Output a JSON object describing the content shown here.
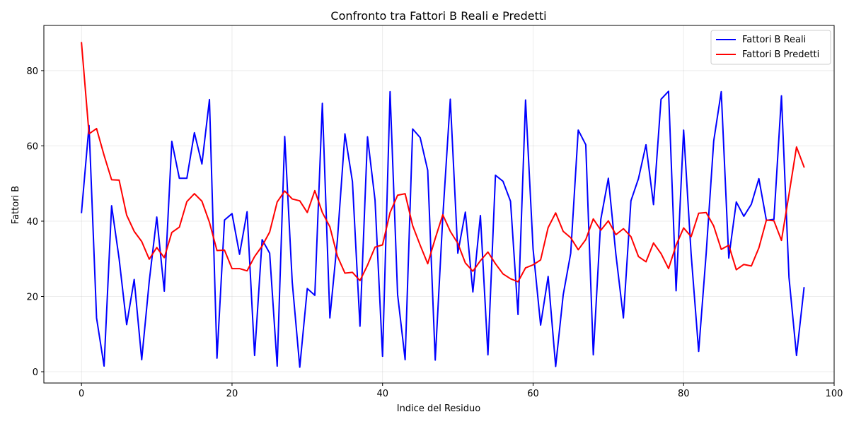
{
  "chart_data": {
    "type": "line",
    "title": "Confronto tra Fattori B Reali e Predetti",
    "xlabel": "Indice del Residuo",
    "ylabel": "Fattori B",
    "xlim": [
      -5,
      100
    ],
    "ylim": [
      -3,
      92
    ],
    "xticks": [
      0,
      20,
      40,
      60,
      80,
      100
    ],
    "yticks": [
      0,
      20,
      40,
      60,
      80
    ],
    "grid": true,
    "legend_position": "top-right",
    "series": [
      {
        "name": "Fattori B Reali",
        "color": "#0000ff",
        "values": [
          42.3,
          65.4,
          14.3,
          1.5,
          44.1,
          30.0,
          12.5,
          24.5,
          3.2,
          24.0,
          41.1,
          21.4,
          61.2,
          51.4,
          51.4,
          63.5,
          55.2,
          72.3,
          3.6,
          40.3,
          42.0,
          31.2,
          42.5,
          4.3,
          35.1,
          31.5,
          1.5,
          62.5,
          23.8,
          1.2,
          22.1,
          20.3,
          71.3,
          14.3,
          35.0,
          63.2,
          50.5,
          12.1,
          62.4,
          45.6,
          4.1,
          74.4,
          20.5,
          3.2,
          64.5,
          62.2,
          53.5,
          3.1,
          41.0,
          72.4,
          31.5,
          42.4,
          21.2,
          41.5,
          4.5,
          52.2,
          50.6,
          45.3,
          15.2,
          72.2,
          32.6,
          12.4,
          25.3,
          1.4,
          20.4,
          31.5,
          64.2,
          60.3,
          4.5,
          40.5,
          51.4,
          31.2,
          14.3,
          45.4,
          51.3,
          60.3,
          44.4,
          72.4,
          74.5,
          21.5,
          64.2,
          31.2,
          5.4,
          31.5,
          61.3,
          74.4,
          30.2,
          45.1,
          41.3,
          44.5,
          51.3,
          40.2,
          40.5,
          73.3,
          25.1,
          4.3,
          22.3
        ]
      },
      {
        "name": "Fattori B Predetti",
        "color": "#ff0000",
        "values": [
          87.4,
          63.2,
          64.6,
          57.5,
          51.0,
          50.9,
          41.6,
          37.3,
          34.6,
          29.9,
          33.0,
          30.3,
          37.0,
          38.4,
          45.2,
          47.3,
          45.3,
          39.7,
          32.2,
          32.3,
          27.4,
          27.4,
          26.8,
          30.6,
          33.4,
          37.1,
          45.1,
          48.0,
          45.9,
          45.4,
          42.3,
          48.1,
          42.3,
          38.5,
          30.7,
          26.2,
          26.4,
          24.2,
          28.3,
          33.1,
          33.7,
          42.3,
          46.9,
          47.3,
          38.8,
          33.6,
          28.7,
          35.4,
          41.7,
          37.3,
          34.1,
          28.9,
          26.7,
          29.5,
          31.8,
          28.7,
          26.0,
          24.7,
          23.9,
          27.6,
          28.4,
          29.7,
          38.3,
          42.2,
          37.3,
          35.6,
          32.4,
          35.1,
          40.6,
          37.6,
          40.1,
          36.4,
          38.0,
          35.9,
          30.6,
          29.2,
          34.2,
          31.4,
          27.4,
          33.6,
          38.2,
          35.9,
          42.1,
          42.3,
          38.7,
          32.5,
          33.6,
          27.1,
          28.5,
          28.1,
          32.9,
          40.3,
          40.1,
          34.9,
          47.1,
          59.7,
          54.4
        ]
      }
    ]
  }
}
